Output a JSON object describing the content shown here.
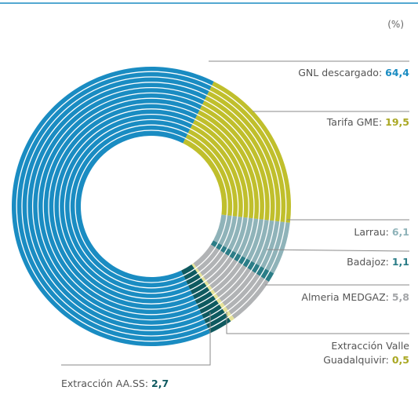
{
  "chart_data": {
    "type": "donut",
    "unit": "(%)",
    "categories": [
      "GNL descargado",
      "Tarifa GME",
      "Larrau",
      "Badajoz",
      "Almeria MEDGAZ",
      "Extracción Valle Guadalquivir",
      "Extracción AA.SS"
    ],
    "values": [
      64.4,
      19.5,
      6.1,
      1.1,
      5.8,
      0.5,
      2.7
    ],
    "value_labels": [
      "64,4",
      "19,5",
      "6,1",
      "1,1",
      "5,8",
      "0,5",
      "2,7"
    ],
    "colors": [
      "#1a8cc2",
      "#c0bf2c",
      "#8fb3b9",
      "#2b7d87",
      "#b1b3b5",
      "#e6e39a",
      "#0f5a60"
    ],
    "label_colors": [
      "#1a8cc2",
      "#aaa824",
      "#8fb3b9",
      "#2b7d87",
      "#a3a5a8",
      "#aaa824",
      "#0f5a60"
    ]
  }
}
